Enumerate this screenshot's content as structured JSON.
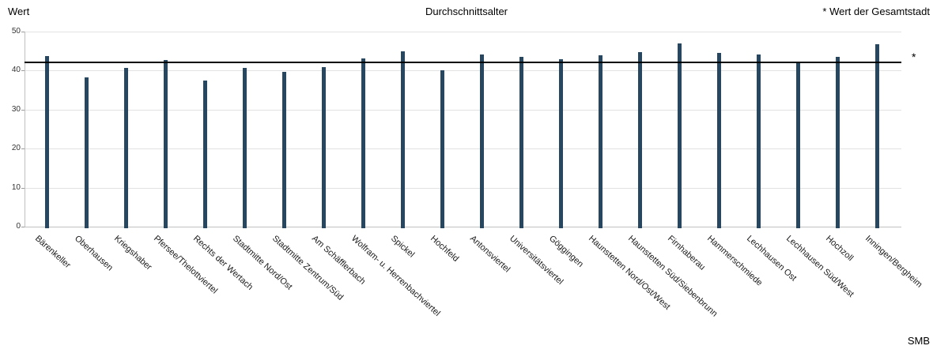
{
  "header": {
    "note": "* Wert der Gesamtstadt"
  },
  "footer": {
    "source_label": "SMB"
  },
  "chart_data": {
    "type": "bar",
    "title": "Durchschnittsalter",
    "xlabel": "",
    "ylabel": "Wert",
    "ylim": [
      0,
      50
    ],
    "yticks": [
      0,
      10,
      20,
      30,
      40,
      50
    ],
    "grid": true,
    "legend_position": "none",
    "bar_color": "#27465f",
    "annotation_top_right": "* Wert der Gesamtstadt",
    "reference_line": {
      "value": 42.1,
      "marker": "*",
      "meaning": "Wert der Gesamtstadt",
      "color": "#000000"
    },
    "categories": [
      "Bärenkeller",
      "Oberhausen",
      "Kriegshaber",
      "Pfersee/Thelottviertel",
      "Rechts der Wertach",
      "Stadtmitte Nord/Ost",
      "Stadtmitte Zentrum/Süd",
      "Am Schäfflerbach",
      "Wolfram- u. Herrenbachviertel",
      "Spickel",
      "Hochfeld",
      "Antonsviertel",
      "Universitätsviertel",
      "Göggingen",
      "Haunstetten Nord/Ost/West",
      "Haunstetten Süd/Siebenbrunn",
      "Firnhaberau",
      "Hammerschmiede",
      "Lechhausen Ost",
      "Lechhausen Süd/West",
      "Hochzoll",
      "Inningen/Bergheim"
    ],
    "values": [
      43.8,
      38.3,
      40.6,
      42.8,
      37.5,
      40.7,
      39.6,
      40.9,
      43.1,
      45.0,
      40.0,
      44.1,
      43.6,
      43.0,
      43.9,
      44.7,
      46.9,
      44.5,
      44.1,
      42.3,
      43.6,
      46.7
    ]
  }
}
